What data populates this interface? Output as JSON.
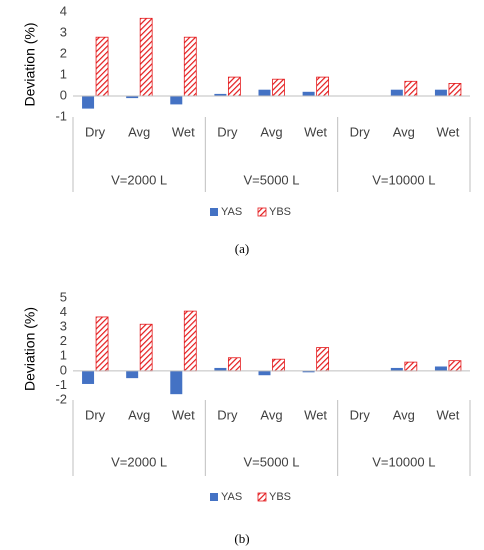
{
  "chart_data": [
    {
      "type": "bar",
      "caption": "(a)",
      "ylabel": "Deviation (%)",
      "categories": [
        "Dry",
        "Avg",
        "Wet",
        "Dry",
        "Avg",
        "Wet",
        "Dry",
        "Avg",
        "Wet"
      ],
      "groups": [
        "V=2000 L",
        "V=5000 L",
        "V=10000 L"
      ],
      "series": [
        {
          "name": "YAS",
          "color": "#4472c4",
          "values": [
            -0.6,
            -0.1,
            -0.4,
            0.1,
            0.3,
            0.2,
            0,
            0.3,
            0.3
          ]
        },
        {
          "name": "YBS",
          "color": "#e41a1c",
          "hatch": true,
          "values": [
            2.8,
            3.7,
            2.8,
            0.9,
            0.8,
            0.9,
            0,
            0.7,
            0.6
          ]
        }
      ],
      "ylim": [
        -1,
        4
      ],
      "yticks": [
        -1,
        0,
        1,
        2,
        3,
        4
      ]
    },
    {
      "type": "bar",
      "caption": "(b)",
      "ylabel": "Deviation (%)",
      "categories": [
        "Dry",
        "Avg",
        "Wet",
        "Dry",
        "Avg",
        "Wet",
        "Dry",
        "Avg",
        "Wet"
      ],
      "groups": [
        "V=2000 L",
        "V=5000 L",
        "V=10000 L"
      ],
      "series": [
        {
          "name": "YAS",
          "color": "#4472c4",
          "values": [
            -0.9,
            -0.5,
            -1.6,
            0.2,
            -0.3,
            -0.1,
            0,
            0.2,
            0.3
          ]
        },
        {
          "name": "YBS",
          "color": "#e41a1c",
          "hatch": true,
          "values": [
            3.7,
            3.2,
            4.1,
            0.9,
            0.8,
            1.6,
            0,
            0.6,
            0.7
          ]
        }
      ],
      "ylim": [
        -2,
        5
      ],
      "yticks": [
        -2,
        -1,
        0,
        1,
        2,
        3,
        4,
        5
      ]
    }
  ]
}
